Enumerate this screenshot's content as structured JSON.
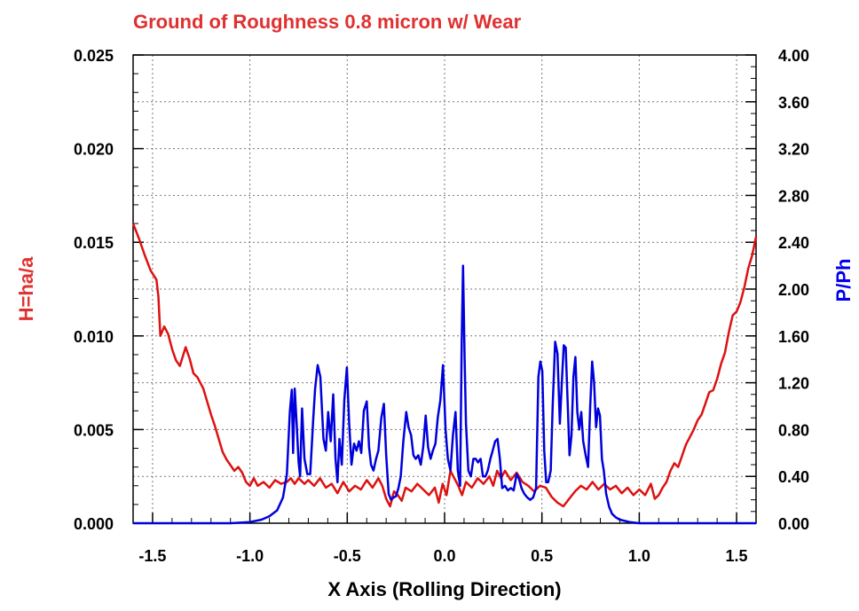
{
  "chart_data": {
    "type": "line",
    "title": "Ground of Roughness 0.8 micron w/ Wear",
    "xlabel": "X Axis (Rolling Direction)",
    "ylabel_left": "H=ha/a",
    "ylabel_right": "P/Ph",
    "xlim": [
      -1.6,
      1.6
    ],
    "ylim_left": [
      0,
      0.025
    ],
    "ylim_right": [
      0,
      4.0
    ],
    "x_ticks": [
      "-1.5",
      "-1.0",
      "-0.5",
      "0.0",
      "0.5",
      "1.0",
      "1.5"
    ],
    "x_tick_values": [
      -1.5,
      -1.0,
      -0.5,
      0.0,
      0.5,
      1.0,
      1.5
    ],
    "y_left_ticks": [
      "0.000",
      "0.005",
      "0.010",
      "0.015",
      "0.020",
      "0.025"
    ],
    "y_left_tick_values": [
      0,
      0.005,
      0.01,
      0.015,
      0.02,
      0.025
    ],
    "y_right_ticks": [
      "0.00",
      "0.40",
      "0.80",
      "1.20",
      "1.60",
      "2.00",
      "2.40",
      "2.80",
      "3.20",
      "3.60",
      "4.00"
    ],
    "y_right_tick_values": [
      0,
      0.4,
      0.8,
      1.2,
      1.6,
      2.0,
      2.4,
      2.8,
      3.2,
      3.6,
      4.0
    ],
    "grid": true,
    "colors": {
      "title": "#e03030",
      "left_axis": "#e03030",
      "right_axis": "#0000ee",
      "film": "#dd1111",
      "pressure": "#0000dd",
      "grid": "#777777"
    },
    "series": [
      {
        "axis": "left",
        "points": [
          [
            -1.6,
            0.016
          ],
          [
            -1.57,
            0.0152
          ],
          [
            -1.54,
            0.0143
          ],
          [
            -1.51,
            0.0135
          ],
          [
            -1.48,
            0.013
          ],
          [
            -1.47,
            0.0121
          ],
          [
            -1.46,
            0.01
          ],
          [
            -1.44,
            0.0105
          ],
          [
            -1.42,
            0.0101
          ],
          [
            -1.4,
            0.0093
          ],
          [
            -1.38,
            0.0087
          ],
          [
            -1.36,
            0.0084
          ],
          [
            -1.33,
            0.0094
          ],
          [
            -1.31,
            0.0088
          ],
          [
            -1.29,
            0.008
          ],
          [
            -1.27,
            0.0078
          ],
          [
            -1.24,
            0.0072
          ],
          [
            -1.22,
            0.0065
          ],
          [
            -1.2,
            0.0058
          ],
          [
            -1.18,
            0.0052
          ],
          [
            -1.16,
            0.0045
          ],
          [
            -1.14,
            0.0038
          ],
          [
            -1.12,
            0.0034
          ],
          [
            -1.1,
            0.0031
          ],
          [
            -1.08,
            0.0028
          ],
          [
            -1.06,
            0.003
          ],
          [
            -1.04,
            0.0027
          ],
          [
            -1.02,
            0.0022
          ],
          [
            -1.0,
            0.002
          ],
          [
            -0.98,
            0.0024
          ],
          [
            -0.96,
            0.002
          ],
          [
            -0.93,
            0.0022
          ],
          [
            -0.9,
            0.0019
          ],
          [
            -0.87,
            0.0023
          ],
          [
            -0.84,
            0.0021
          ],
          [
            -0.81,
            0.0022
          ],
          [
            -0.79,
            0.0024
          ],
          [
            -0.77,
            0.0021
          ],
          [
            -0.75,
            0.0024
          ],
          [
            -0.72,
            0.0021
          ],
          [
            -0.7,
            0.0023
          ],
          [
            -0.67,
            0.002
          ],
          [
            -0.64,
            0.0024
          ],
          [
            -0.61,
            0.0019
          ],
          [
            -0.58,
            0.0021
          ],
          [
            -0.55,
            0.0016
          ],
          [
            -0.52,
            0.0022
          ],
          [
            -0.49,
            0.0017
          ],
          [
            -0.46,
            0.002
          ],
          [
            -0.43,
            0.0018
          ],
          [
            -0.4,
            0.0023
          ],
          [
            -0.37,
            0.0019
          ],
          [
            -0.34,
            0.0024
          ],
          [
            -0.32,
            0.002
          ],
          [
            -0.3,
            0.0013
          ],
          [
            -0.28,
            0.0009
          ],
          [
            -0.26,
            0.0017
          ],
          [
            -0.24,
            0.0015
          ],
          [
            -0.22,
            0.0012
          ],
          [
            -0.2,
            0.0019
          ],
          [
            -0.17,
            0.0017
          ],
          [
            -0.14,
            0.0021
          ],
          [
            -0.11,
            0.0018
          ],
          [
            -0.08,
            0.0015
          ],
          [
            -0.05,
            0.0019
          ],
          [
            -0.03,
            0.0011
          ],
          [
            -0.01,
            0.0021
          ],
          [
            0.01,
            0.0015
          ],
          [
            0.03,
            0.0028
          ],
          [
            0.05,
            0.0024
          ],
          [
            0.07,
            0.002
          ],
          [
            0.09,
            0.0015
          ],
          [
            0.11,
            0.0022
          ],
          [
            0.14,
            0.0019
          ],
          [
            0.17,
            0.0024
          ],
          [
            0.2,
            0.0021
          ],
          [
            0.23,
            0.0025
          ],
          [
            0.25,
            0.002
          ],
          [
            0.27,
            0.0028
          ],
          [
            0.29,
            0.0024
          ],
          [
            0.31,
            0.0028
          ],
          [
            0.34,
            0.0023
          ],
          [
            0.37,
            0.0027
          ],
          [
            0.4,
            0.0022
          ],
          [
            0.43,
            0.002
          ],
          [
            0.46,
            0.0017
          ],
          [
            0.49,
            0.002
          ],
          [
            0.52,
            0.0019
          ],
          [
            0.55,
            0.0014
          ],
          [
            0.58,
            0.0011
          ],
          [
            0.61,
            0.0009
          ],
          [
            0.64,
            0.0013
          ],
          [
            0.67,
            0.0017
          ],
          [
            0.7,
            0.002
          ],
          [
            0.73,
            0.0018
          ],
          [
            0.76,
            0.0022
          ],
          [
            0.79,
            0.0018
          ],
          [
            0.82,
            0.0021
          ],
          [
            0.85,
            0.0018
          ],
          [
            0.88,
            0.002
          ],
          [
            0.91,
            0.0016
          ],
          [
            0.94,
            0.0019
          ],
          [
            0.97,
            0.0015
          ],
          [
            1.0,
            0.0018
          ],
          [
            1.03,
            0.0015
          ],
          [
            1.06,
            0.0021
          ],
          [
            1.08,
            0.0013
          ],
          [
            1.1,
            0.0015
          ],
          [
            1.12,
            0.0019
          ],
          [
            1.14,
            0.0022
          ],
          [
            1.16,
            0.0028
          ],
          [
            1.18,
            0.0032
          ],
          [
            1.2,
            0.003
          ],
          [
            1.22,
            0.0036
          ],
          [
            1.24,
            0.0042
          ],
          [
            1.26,
            0.0046
          ],
          [
            1.28,
            0.005
          ],
          [
            1.3,
            0.0055
          ],
          [
            1.32,
            0.0058
          ],
          [
            1.34,
            0.0064
          ],
          [
            1.36,
            0.007
          ],
          [
            1.38,
            0.0071
          ],
          [
            1.4,
            0.0077
          ],
          [
            1.42,
            0.0085
          ],
          [
            1.44,
            0.0091
          ],
          [
            1.46,
            0.0102
          ],
          [
            1.48,
            0.0111
          ],
          [
            1.5,
            0.0113
          ],
          [
            1.52,
            0.0118
          ],
          [
            1.54,
            0.0126
          ],
          [
            1.56,
            0.0136
          ],
          [
            1.58,
            0.0143
          ],
          [
            1.6,
            0.0153
          ]
        ]
      },
      {
        "axis": "right",
        "points": [
          [
            -1.6,
            0.0
          ],
          [
            -1.2,
            0.0
          ],
          [
            -1.1,
            0.0
          ],
          [
            -1.0,
            0.01
          ],
          [
            -0.94,
            0.03
          ],
          [
            -0.9,
            0.06
          ],
          [
            -0.86,
            0.11
          ],
          [
            -0.83,
            0.22
          ],
          [
            -0.81,
            0.42
          ],
          [
            -0.795,
            0.95
          ],
          [
            -0.785,
            1.14
          ],
          [
            -0.778,
            0.6
          ],
          [
            -0.77,
            1.15
          ],
          [
            -0.76,
            0.85
          ],
          [
            -0.75,
            0.52
          ],
          [
            -0.742,
            0.4
          ],
          [
            -0.732,
            0.98
          ],
          [
            -0.72,
            0.55
          ],
          [
            -0.705,
            0.42
          ],
          [
            -0.69,
            0.42
          ],
          [
            -0.675,
            0.88
          ],
          [
            -0.665,
            1.15
          ],
          [
            -0.652,
            1.35
          ],
          [
            -0.638,
            1.25
          ],
          [
            -0.622,
            0.72
          ],
          [
            -0.61,
            0.62
          ],
          [
            -0.598,
            0.95
          ],
          [
            -0.585,
            0.7
          ],
          [
            -0.572,
            1.1
          ],
          [
            -0.56,
            0.55
          ],
          [
            -0.55,
            0.35
          ],
          [
            -0.54,
            0.72
          ],
          [
            -0.528,
            0.5
          ],
          [
            -0.515,
            1.05
          ],
          [
            -0.502,
            1.33
          ],
          [
            -0.49,
            0.85
          ],
          [
            -0.478,
            0.5
          ],
          [
            -0.465,
            0.68
          ],
          [
            -0.452,
            0.62
          ],
          [
            -0.44,
            0.7
          ],
          [
            -0.428,
            0.6
          ],
          [
            -0.415,
            0.96
          ],
          [
            -0.4,
            1.04
          ],
          [
            -0.388,
            0.65
          ],
          [
            -0.378,
            0.5
          ],
          [
            -0.365,
            0.45
          ],
          [
            -0.352,
            0.55
          ],
          [
            -0.34,
            0.62
          ],
          [
            -0.325,
            0.9
          ],
          [
            -0.312,
            1.02
          ],
          [
            -0.3,
            0.58
          ],
          [
            -0.287,
            0.25
          ],
          [
            -0.275,
            0.2
          ],
          [
            -0.262,
            0.22
          ],
          [
            -0.25,
            0.23
          ],
          [
            -0.237,
            0.3
          ],
          [
            -0.225,
            0.4
          ],
          [
            -0.212,
            0.7
          ],
          [
            -0.197,
            0.95
          ],
          [
            -0.185,
            0.82
          ],
          [
            -0.172,
            0.75
          ],
          [
            -0.16,
            0.58
          ],
          [
            -0.148,
            0.55
          ],
          [
            -0.135,
            0.58
          ],
          [
            -0.122,
            0.5
          ],
          [
            -0.11,
            0.65
          ],
          [
            -0.097,
            0.92
          ],
          [
            -0.085,
            0.65
          ],
          [
            -0.072,
            0.55
          ],
          [
            -0.06,
            0.62
          ],
          [
            -0.047,
            0.68
          ],
          [
            -0.035,
            0.9
          ],
          [
            -0.022,
            1.05
          ],
          [
            -0.008,
            1.35
          ],
          [
            0.005,
            0.8
          ],
          [
            0.017,
            0.55
          ],
          [
            0.03,
            0.45
          ],
          [
            0.043,
            0.75
          ],
          [
            0.056,
            0.95
          ],
          [
            0.068,
            0.45
          ],
          [
            0.08,
            0.32
          ],
          [
            0.088,
            1.55
          ],
          [
            0.095,
            2.2
          ],
          [
            0.103,
            1.4
          ],
          [
            0.11,
            0.85
          ],
          [
            0.122,
            0.45
          ],
          [
            0.135,
            0.4
          ],
          [
            0.148,
            0.55
          ],
          [
            0.16,
            0.55
          ],
          [
            0.172,
            0.52
          ],
          [
            0.185,
            0.55
          ],
          [
            0.197,
            0.4
          ],
          [
            0.21,
            0.4
          ],
          [
            0.222,
            0.45
          ],
          [
            0.235,
            0.55
          ],
          [
            0.247,
            0.62
          ],
          [
            0.26,
            0.7
          ],
          [
            0.272,
            0.72
          ],
          [
            0.284,
            0.55
          ],
          [
            0.296,
            0.3
          ],
          [
            0.31,
            0.32
          ],
          [
            0.325,
            0.28
          ],
          [
            0.34,
            0.3
          ],
          [
            0.355,
            0.28
          ],
          [
            0.37,
            0.42
          ],
          [
            0.382,
            0.38
          ],
          [
            0.395,
            0.3
          ],
          [
            0.41,
            0.25
          ],
          [
            0.425,
            0.22
          ],
          [
            0.44,
            0.2
          ],
          [
            0.455,
            0.22
          ],
          [
            0.47,
            0.3
          ],
          [
            0.482,
            1.25
          ],
          [
            0.492,
            1.38
          ],
          [
            0.502,
            1.3
          ],
          [
            0.512,
            0.62
          ],
          [
            0.522,
            0.35
          ],
          [
            0.532,
            0.35
          ],
          [
            0.545,
            0.45
          ],
          [
            0.555,
            1.0
          ],
          [
            0.568,
            1.55
          ],
          [
            0.58,
            1.45
          ],
          [
            0.592,
            0.85
          ],
          [
            0.602,
            1.2
          ],
          [
            0.612,
            1.52
          ],
          [
            0.622,
            1.5
          ],
          [
            0.632,
            1.05
          ],
          [
            0.642,
            0.58
          ],
          [
            0.652,
            0.75
          ],
          [
            0.662,
            1.25
          ],
          [
            0.672,
            1.42
          ],
          [
            0.682,
            0.95
          ],
          [
            0.692,
            0.8
          ],
          [
            0.702,
            0.95
          ],
          [
            0.712,
            0.7
          ],
          [
            0.725,
            0.58
          ],
          [
            0.737,
            0.48
          ],
          [
            0.748,
            1.0
          ],
          [
            0.758,
            1.38
          ],
          [
            0.768,
            1.2
          ],
          [
            0.778,
            0.82
          ],
          [
            0.788,
            0.98
          ],
          [
            0.798,
            0.92
          ],
          [
            0.808,
            0.55
          ],
          [
            0.818,
            0.45
          ],
          [
            0.83,
            0.25
          ],
          [
            0.845,
            0.14
          ],
          [
            0.86,
            0.08
          ],
          [
            0.88,
            0.05
          ],
          [
            0.9,
            0.03
          ],
          [
            0.95,
            0.01
          ],
          [
            1.0,
            0.0
          ],
          [
            1.2,
            0.0
          ],
          [
            1.6,
            0.0
          ]
        ]
      }
    ]
  }
}
